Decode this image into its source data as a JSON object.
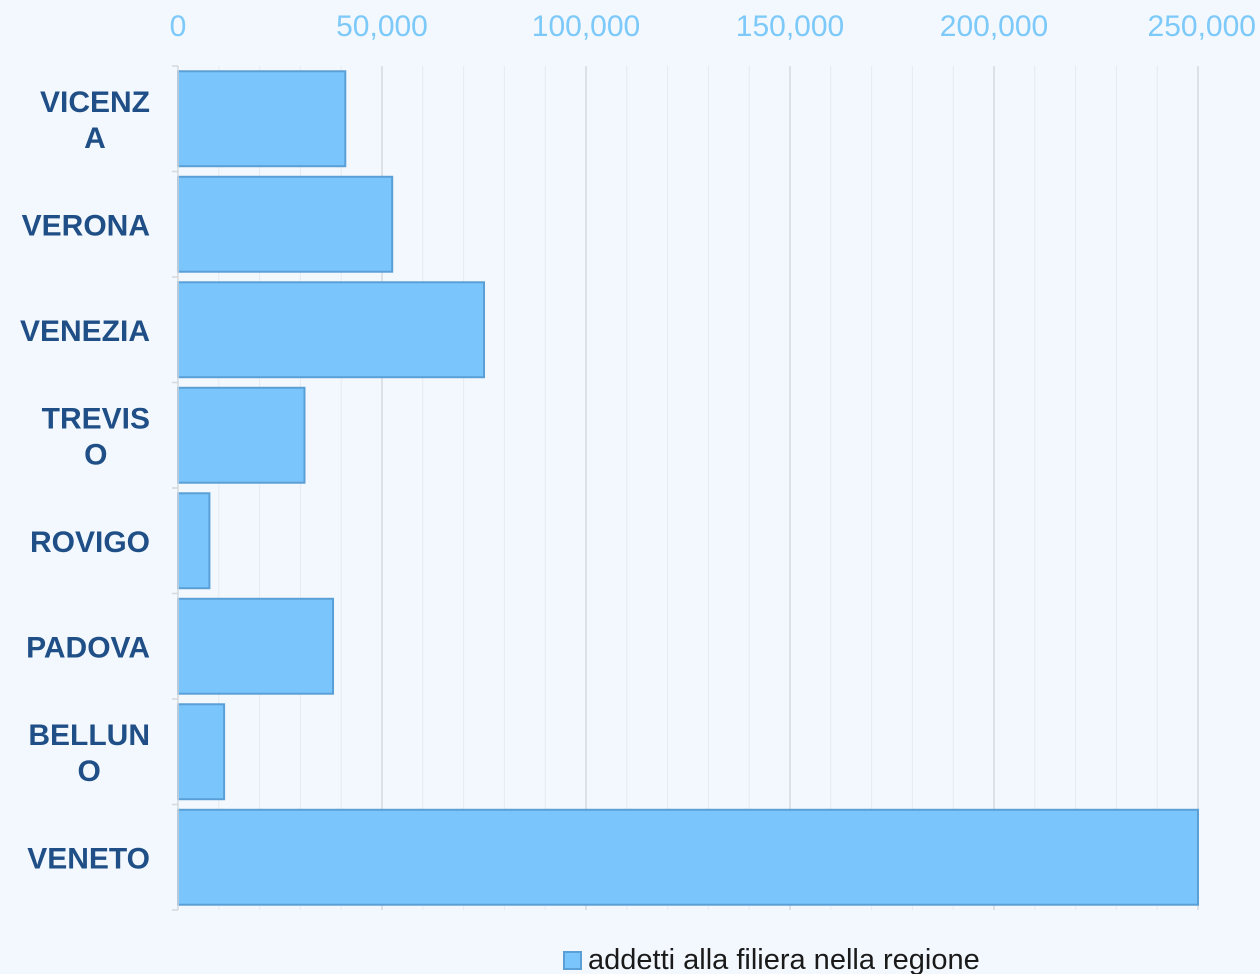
{
  "chart_data": {
    "type": "bar",
    "orientation": "horizontal",
    "categories": [
      "VICENZA",
      "VERONA",
      "VENEZIA",
      "TREVISO",
      "ROVIGO",
      "PADOVA",
      "BELLUNO",
      "VENETO"
    ],
    "category_lines": [
      [
        "VICENZ",
        "A"
      ],
      [
        "VERONA"
      ],
      [
        "VENEZIA"
      ],
      [
        "TREVIS",
        "O"
      ],
      [
        "ROVIGO"
      ],
      [
        "PADOVA"
      ],
      [
        "BELLUN",
        "O"
      ],
      [
        "VENETO"
      ]
    ],
    "series": [
      {
        "name": "addetti alla filiera nella regione",
        "values": [
          41000,
          52500,
          75000,
          31000,
          7700,
          38000,
          11300,
          250000
        ]
      }
    ],
    "xlim": [
      0,
      250000
    ],
    "xticks": [
      0,
      50000,
      100000,
      150000,
      200000,
      250000
    ],
    "xtick_labels": [
      "0",
      "50,000",
      "100,000",
      "150,000",
      "200,000",
      "250,000"
    ],
    "x_axis_position": "top",
    "grid": true,
    "legend_position": "bottom",
    "colors": {
      "bar_fill": "#7ac6fc",
      "bar_stroke": "#5a9fd6",
      "tick_label": "#7dc9fa",
      "category_label": "#1f4f86",
      "grid_major": "#d4d9de",
      "grid_minor": "#e6eaee",
      "background": "#f2f8fd"
    }
  },
  "legend": {
    "label": "addetti alla filiera nella regione"
  }
}
